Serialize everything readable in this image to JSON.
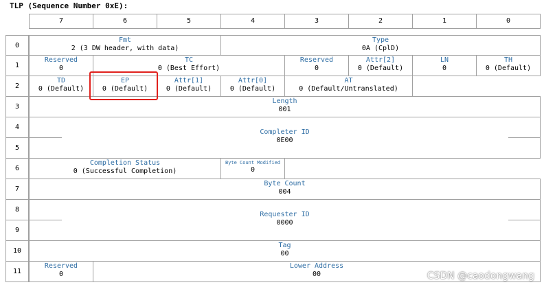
{
  "title": "TLP (Sequence Number 0xE):",
  "columns": [
    "7",
    "6",
    "5",
    "4",
    "3",
    "2",
    "1",
    "0"
  ],
  "rows": [
    "0",
    "1",
    "2",
    "3",
    "4",
    "5",
    "6",
    "7",
    "8",
    "9",
    "10",
    "11"
  ],
  "fields": {
    "fmt": {
      "name": "Fmt",
      "value": "2 (3 DW header, with data)"
    },
    "type": {
      "name": "Type",
      "value": "0A (CplD)"
    },
    "reserved1a": {
      "name": "Reserved",
      "value": "0"
    },
    "tc": {
      "name": "TC",
      "value": "0 (Best Effort)"
    },
    "reserved1b": {
      "name": "Reserved",
      "value": "0"
    },
    "attr2": {
      "name": "Attr[2]",
      "value": "0 (Default)"
    },
    "ln": {
      "name": "LN",
      "value": "0"
    },
    "th": {
      "name": "TH",
      "value": "0 (Default)"
    },
    "td": {
      "name": "TD",
      "value": "0 (Default)"
    },
    "ep": {
      "name": "EP",
      "value": "0 (Default)"
    },
    "attr1": {
      "name": "Attr[1]",
      "value": "0 (Default)"
    },
    "attr0": {
      "name": "Attr[0]",
      "value": "0 (Default)"
    },
    "at": {
      "name": "AT",
      "value": "0 (Default/Untranslated)"
    },
    "length": {
      "name": "Length",
      "value": "001"
    },
    "completer_id": {
      "name": "Completer ID",
      "value": "0E00"
    },
    "completion_status": {
      "name": "Completion Status",
      "value": "0 (Successful Completion)"
    },
    "bcm": {
      "name": "Byte Count Modified",
      "value": "0"
    },
    "byte_count": {
      "name": "Byte Count",
      "value": "004"
    },
    "requester_id": {
      "name": "Requester ID",
      "value": "0000"
    },
    "tag": {
      "name": "Tag",
      "value": "00"
    },
    "reserved11": {
      "name": "Reserved",
      "value": "0"
    },
    "lower_address": {
      "name": "Lower Address",
      "value": "00"
    }
  },
  "watermark": "CSDN @caodongwang",
  "highlight_color": "#e0201c",
  "field_name_color": "#2e6da4"
}
